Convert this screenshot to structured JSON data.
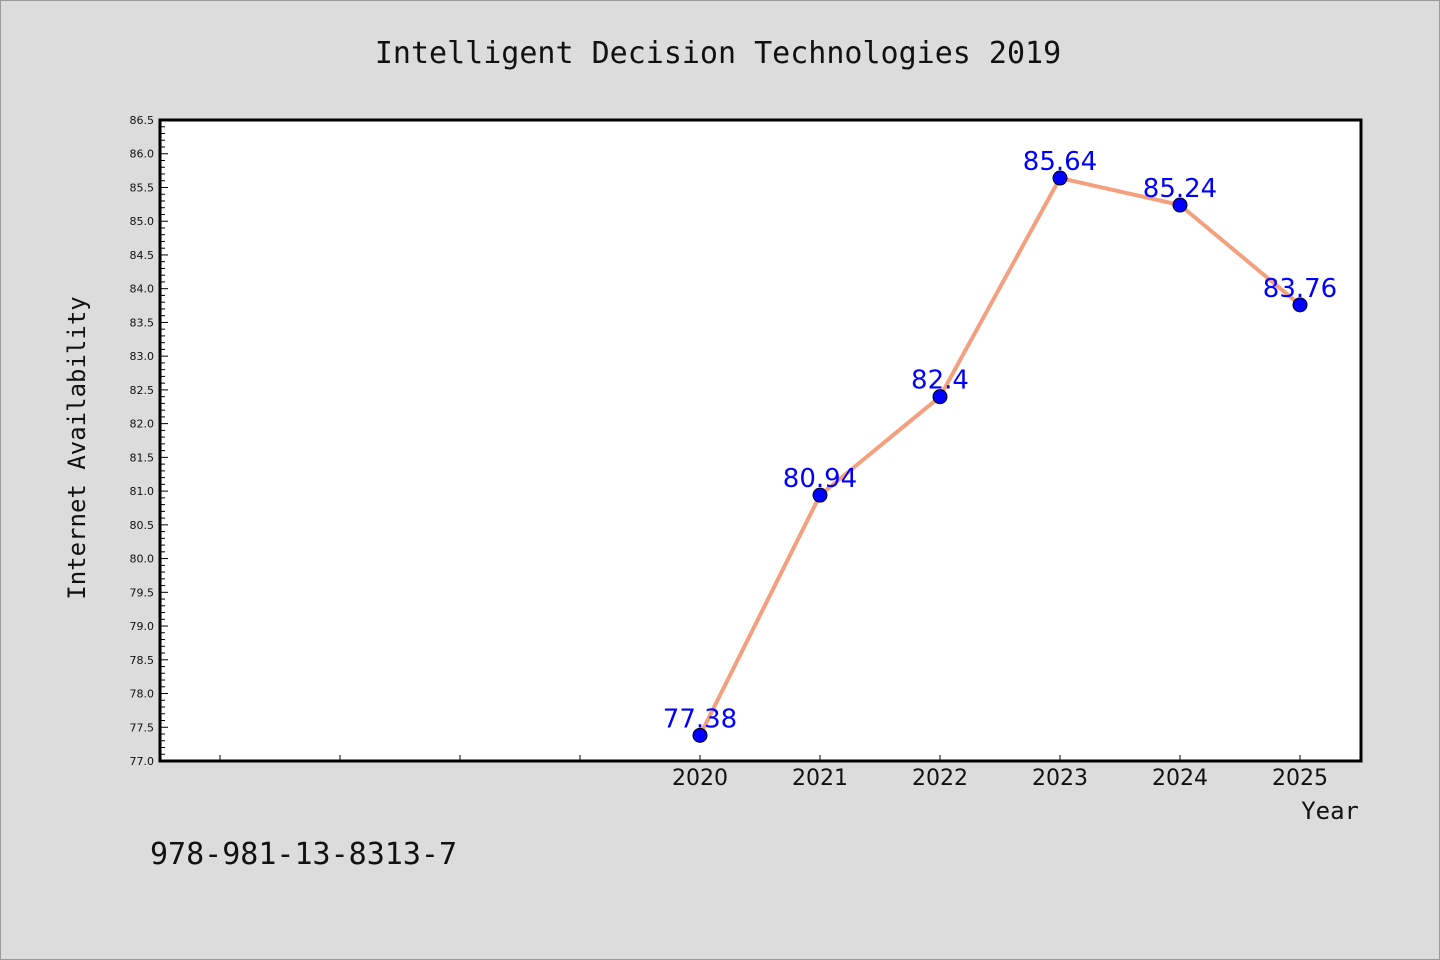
{
  "footer_text": "978-981-13-8313-7",
  "colors": {
    "line": "#f4a07f",
    "marker": "#0000ff",
    "label": "#0000ff",
    "background": "#dcdcdc",
    "plot_background": "#ffffff"
  },
  "chart_data": {
    "type": "line",
    "title": "Intelligent Decision Technologies 2019",
    "xlabel": "Year",
    "ylabel": "Internet Availability",
    "x": [
      "2020",
      "2021",
      "2022",
      "2023",
      "2024",
      "2025"
    ],
    "series": [
      {
        "values": [
          77.38,
          80.94,
          82.4,
          85.64,
          85.24,
          83.76
        ],
        "data_labels": [
          "77.38",
          "80.94",
          "82.4",
          "85.64",
          "85.24",
          "83.76"
        ]
      }
    ],
    "ylim": [
      77.0,
      86.5
    ],
    "y_major_step": 0.5,
    "y_minor_step": 0.1,
    "x_extra_unlabeled_ticks": 4,
    "grid": false,
    "legend": "none"
  }
}
